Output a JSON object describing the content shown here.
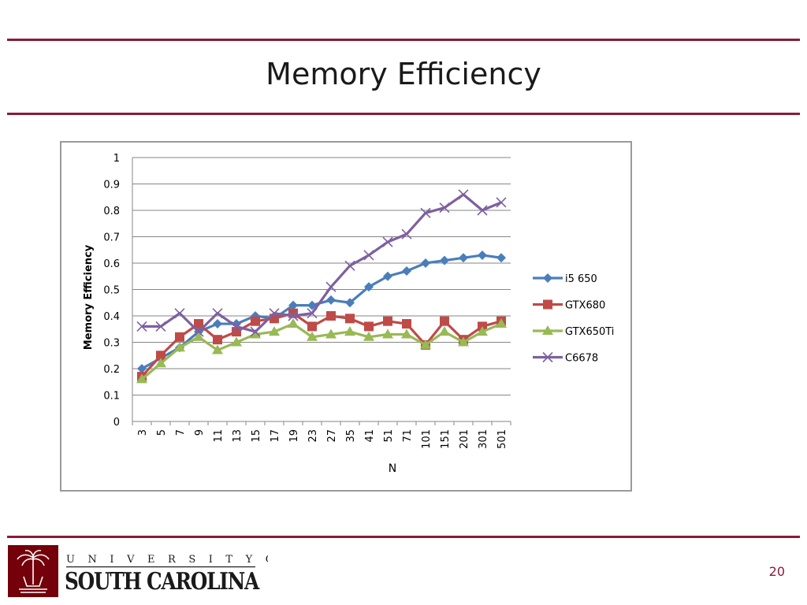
{
  "slide": {
    "title": "Memory Efficiency",
    "page_number": "20"
  },
  "logo": {
    "line1": "U N I V E R S I T Y   O F",
    "line2": "SOUTH CAROLINA",
    "brand_color": "#73000a"
  },
  "chart_data": {
    "type": "line",
    "categories": [
      "3",
      "5",
      "7",
      "9",
      "11",
      "13",
      "15",
      "17",
      "19",
      "23",
      "27",
      "35",
      "41",
      "51",
      "71",
      "101",
      "151",
      "201",
      "301",
      "501"
    ],
    "ylabel": "Memory Efficiency",
    "xlabel": "N",
    "ylim": [
      0,
      1
    ],
    "yticks": [
      "0",
      "0.1",
      "0.2",
      "0.3",
      "0.4",
      "0.5",
      "0.6",
      "0.7",
      "0.8",
      "0.9",
      "1"
    ],
    "grid": true,
    "legend_position": "right",
    "series": [
      {
        "name": "i5 650",
        "color": "#4a7ebb",
        "marker": "diamond",
        "values": [
          0.2,
          0.24,
          0.28,
          0.34,
          0.37,
          0.37,
          0.4,
          0.39,
          0.44,
          0.44,
          0.46,
          0.45,
          0.51,
          0.55,
          0.57,
          0.6,
          0.61,
          0.62,
          0.63,
          0.62
        ]
      },
      {
        "name": "GTX680",
        "color": "#be4b48",
        "marker": "square",
        "values": [
          0.17,
          0.25,
          0.32,
          0.37,
          0.31,
          0.34,
          0.38,
          0.39,
          0.41,
          0.36,
          0.4,
          0.39,
          0.36,
          0.38,
          0.37,
          0.29,
          0.38,
          0.31,
          0.36,
          0.38
        ]
      },
      {
        "name": "GTX650Ti",
        "color": "#98b954",
        "marker": "triangle",
        "values": [
          0.16,
          0.22,
          0.28,
          0.32,
          0.27,
          0.3,
          0.33,
          0.34,
          0.37,
          0.32,
          0.33,
          0.34,
          0.32,
          0.33,
          0.33,
          0.29,
          0.34,
          0.3,
          0.34,
          0.37
        ]
      },
      {
        "name": "C6678",
        "color": "#7d60a0",
        "marker": "x",
        "values": [
          0.36,
          0.36,
          0.41,
          0.34,
          0.41,
          0.36,
          0.34,
          0.41,
          0.4,
          0.41,
          0.51,
          0.59,
          0.63,
          0.68,
          0.71,
          0.79,
          0.81,
          0.86,
          0.8,
          0.83
        ]
      }
    ]
  }
}
